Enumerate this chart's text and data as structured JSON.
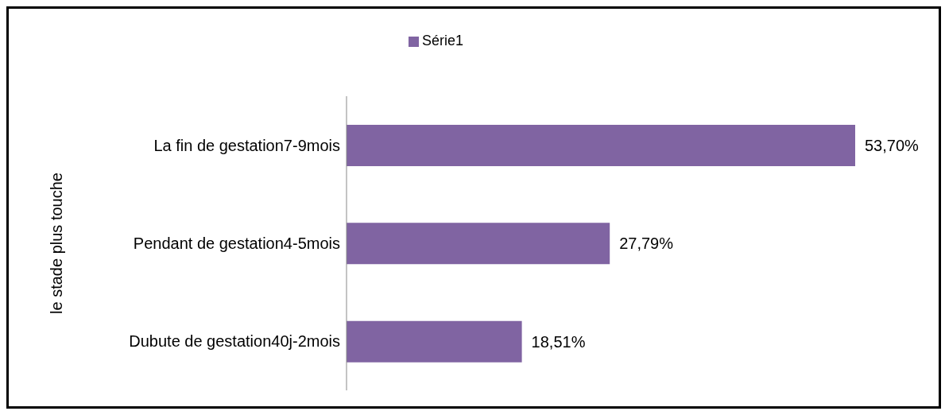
{
  "chart_data": {
    "type": "bar",
    "orientation": "horizontal",
    "ylabel": "le stade plus touche",
    "legend": "top",
    "categories": [
      "La fin de gestation7-9mois",
      "Pendant de gestation4-5mois",
      "Dubute de gestation40j-2mois"
    ],
    "series": [
      {
        "name": "Série1",
        "color": "#8064a2",
        "values": [
          53.7,
          27.79,
          18.51
        ],
        "value_labels": [
          "53,70%",
          "27,79%",
          "18,51%"
        ]
      }
    ]
  }
}
